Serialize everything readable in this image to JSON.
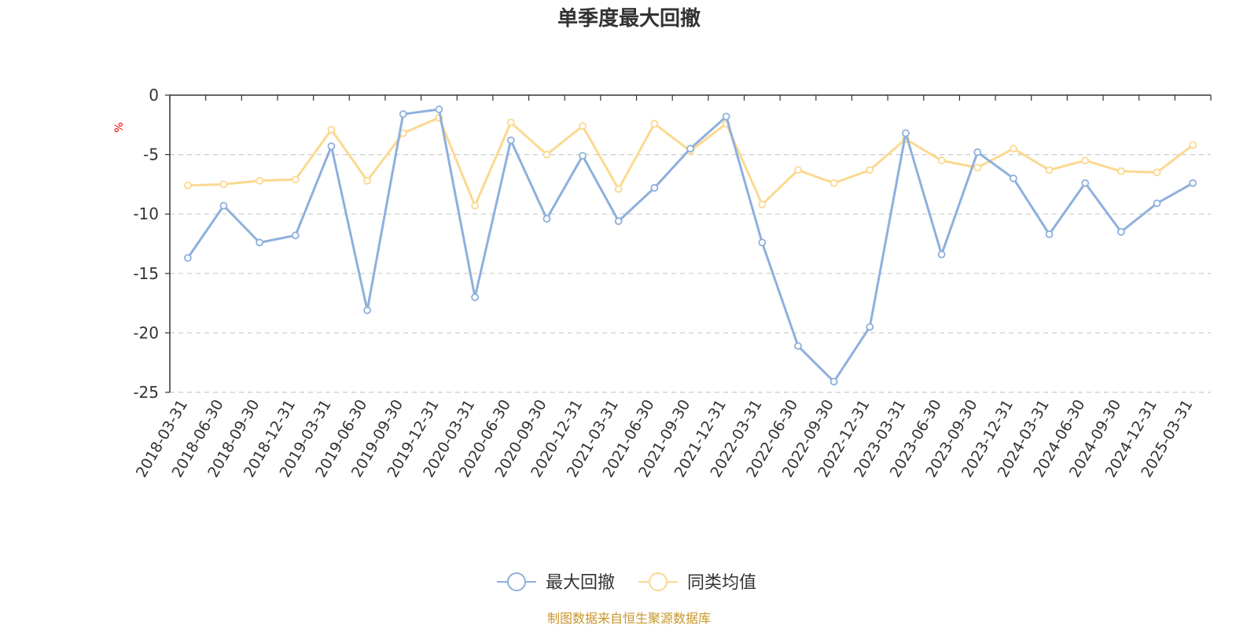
{
  "chart_data": {
    "type": "line",
    "title": "单季度最大回撤",
    "ylabel": "%",
    "xlabel": "",
    "ylim": [
      -25,
      0
    ],
    "yticks": [
      0,
      -5,
      -10,
      -15,
      -20,
      -25
    ],
    "grid": true,
    "legend_position": "bottom-center",
    "categories": [
      "2018-03-31",
      "2018-06-30",
      "2018-09-30",
      "2018-12-31",
      "2019-03-31",
      "2019-06-30",
      "2019-09-30",
      "2019-12-31",
      "2020-03-31",
      "2020-06-30",
      "2020-09-30",
      "2020-12-31",
      "2021-03-31",
      "2021-06-30",
      "2021-09-30",
      "2021-12-31",
      "2022-03-31",
      "2022-06-30",
      "2022-09-30",
      "2022-12-31",
      "2023-03-31",
      "2023-06-30",
      "2023-09-30",
      "2023-12-31",
      "2024-03-31",
      "2024-06-30",
      "2024-09-30",
      "2024-12-31",
      "2025-03-31"
    ],
    "series": [
      {
        "name": "最大回撤",
        "color": "#8eb0dc",
        "values": [
          -13.7,
          -9.3,
          -12.4,
          -11.8,
          -4.3,
          -18.1,
          -1.6,
          -1.2,
          -17.0,
          -3.8,
          -10.4,
          -5.1,
          -10.6,
          -7.8,
          -4.5,
          -1.8,
          -12.4,
          -21.1,
          -24.1,
          -19.5,
          -3.2,
          -13.4,
          -4.8,
          -7.0,
          -11.7,
          -7.4,
          -11.5,
          -9.1,
          -7.4
        ]
      },
      {
        "name": "同类均值",
        "color": "#fbd98f",
        "values": [
          -7.6,
          -7.5,
          -7.2,
          -7.1,
          -2.9,
          -7.2,
          -3.2,
          -1.9,
          -9.3,
          -2.3,
          -5.0,
          -2.6,
          -7.9,
          -2.4,
          -4.7,
          -2.4,
          -9.2,
          -6.3,
          -7.4,
          -6.3,
          -3.7,
          -5.5,
          -6.1,
          -4.5,
          -6.3,
          -5.5,
          -6.4,
          -6.5,
          -4.2
        ]
      }
    ]
  },
  "source_text": "制图数据来自恒生聚源数据库"
}
